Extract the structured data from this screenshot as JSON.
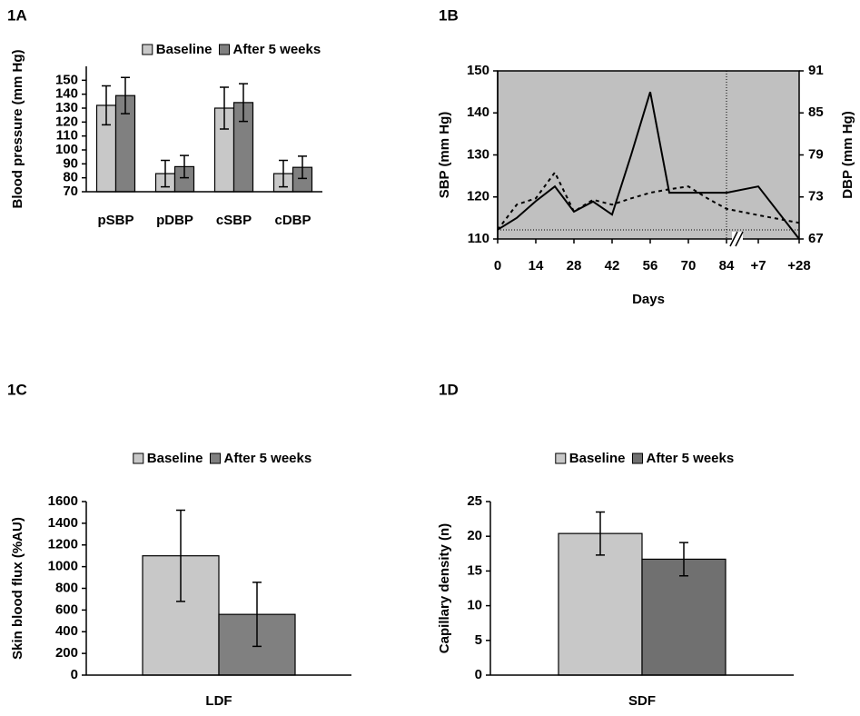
{
  "chart_data": [
    {
      "type": "bar",
      "title": "1A",
      "ylabel": "Blood pressure (mm Hg)",
      "categories": [
        "pSBP",
        "pDBP",
        "cSBP",
        "cDBP"
      ],
      "series": [
        {
          "name": "Baseline",
          "color": "#c8c8c8",
          "values": [
            132,
            83,
            130,
            83
          ],
          "errors": [
            14,
            9.5,
            15,
            9.5
          ]
        },
        {
          "name": "After 5 weeks",
          "color": "#808080",
          "values": [
            139,
            88,
            134,
            87.5
          ],
          "errors": [
            13,
            8,
            13.5,
            8
          ]
        }
      ],
      "ylim": [
        70,
        160
      ],
      "yticks": [
        70,
        80,
        90,
        100,
        110,
        120,
        130,
        140,
        150
      ]
    },
    {
      "type": "line",
      "title": "1B",
      "ylabel": "SBP (mm Hg)",
      "y2label": "DBP (mm Hg)",
      "xlabel": "Days",
      "categories": [
        "0",
        null,
        "14",
        null,
        "28",
        null,
        "42",
        null,
        "56",
        null,
        "70",
        null,
        "84",
        "+7",
        "+28"
      ],
      "series": [
        {
          "color": "#000000",
          "values": [
            112.2,
            115,
            119,
            122.5,
            116.5,
            118.9,
            115.8,
            130,
            145,
            121,
            121,
            121,
            121,
            122.5,
            110
          ]
        },
        {
          "color": "#000000",
          "axis": "y2",
          "dashed": true,
          "values": [
            68.3,
            71.9,
            72.8,
            76.5,
            70.9,
            72.6,
            71.9,
            72.8,
            73.6,
            74.1,
            74.5,
            72.8,
            71.3,
            70.4,
            69.3
          ]
        }
      ],
      "ylim": [
        110,
        150
      ],
      "yticks": [
        110,
        120,
        130,
        140,
        150
      ],
      "y2lim": [
        67,
        91
      ],
      "y2ticks": [
        67,
        73,
        79,
        85,
        91
      ],
      "background": "#c0c0c0"
    },
    {
      "type": "bar",
      "title": "1C",
      "ylabel": "Skin blood flux (%AU)",
      "categories": [
        "LDF"
      ],
      "series": [
        {
          "name": "Baseline",
          "color": "#c8c8c8",
          "values": [
            1100
          ],
          "errors": [
            420
          ]
        },
        {
          "name": "After 5 weeks",
          "color": "#808080",
          "values": [
            560
          ],
          "errors": [
            295
          ]
        }
      ],
      "ylim": [
        0,
        1600
      ],
      "yticks": [
        0,
        200,
        400,
        600,
        800,
        1000,
        1200,
        1400,
        1600
      ]
    },
    {
      "type": "bar",
      "title": "1D",
      "ylabel": "Capillary density (n)",
      "categories": [
        "SDF"
      ],
      "series": [
        {
          "name": "Baseline",
          "color": "#c8c8c8",
          "values": [
            20.4
          ],
          "errors": [
            3.1
          ]
        },
        {
          "name": "After 5 weeks",
          "color": "#707070",
          "values": [
            16.7
          ],
          "errors": [
            2.4
          ]
        }
      ],
      "ylim": [
        0,
        25
      ],
      "yticks": [
        0,
        5,
        10,
        15,
        20,
        25
      ]
    }
  ]
}
